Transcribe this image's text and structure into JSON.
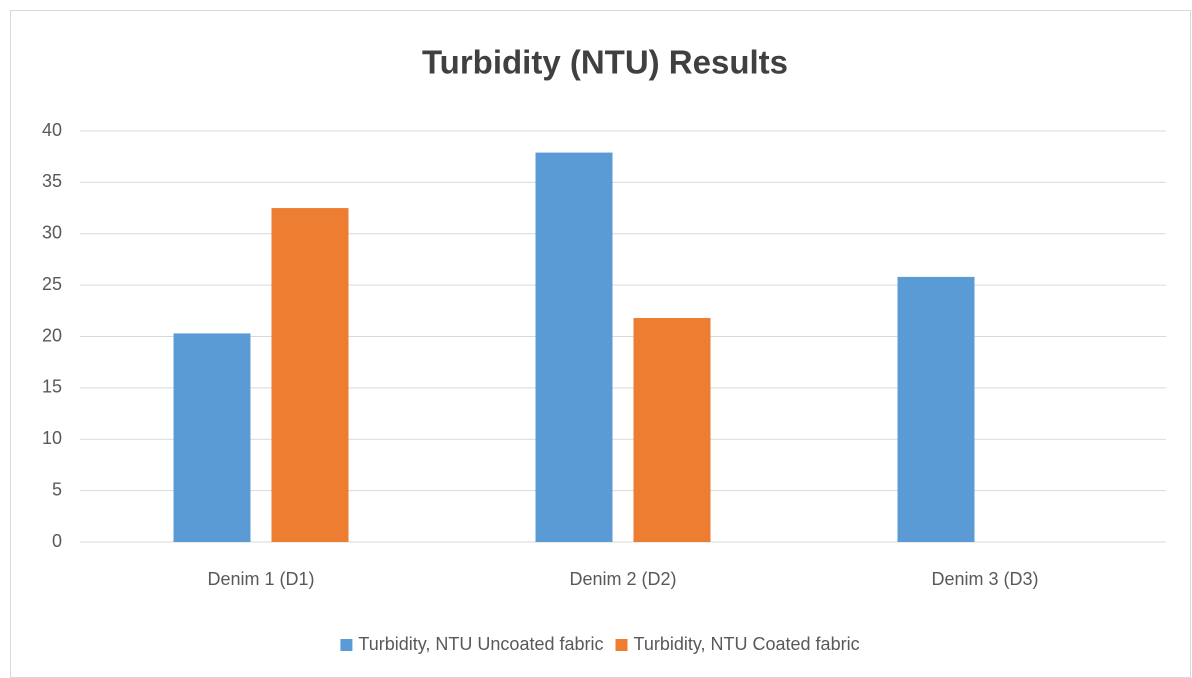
{
  "chart_data": {
    "type": "bar",
    "title": "Turbidity (NTU) Results",
    "categories": [
      "Denim 1 (D1)",
      "Denim 2 (D2)",
      "Denim 3 (D3)"
    ],
    "series": [
      {
        "name": "Turbidity, NTU Uncoated fabric",
        "color": "#5b9bd5",
        "values": [
          20.3,
          37.9,
          25.8
        ]
      },
      {
        "name": "Turbidity, NTU Coated fabric",
        "color": "#ed7d31",
        "values": [
          32.5,
          21.8,
          null
        ]
      }
    ],
    "ylim": [
      0,
      40
    ],
    "yticks": [
      0,
      5,
      10,
      15,
      20,
      25,
      30,
      35,
      40
    ],
    "grid": true,
    "legend": "bottom"
  }
}
